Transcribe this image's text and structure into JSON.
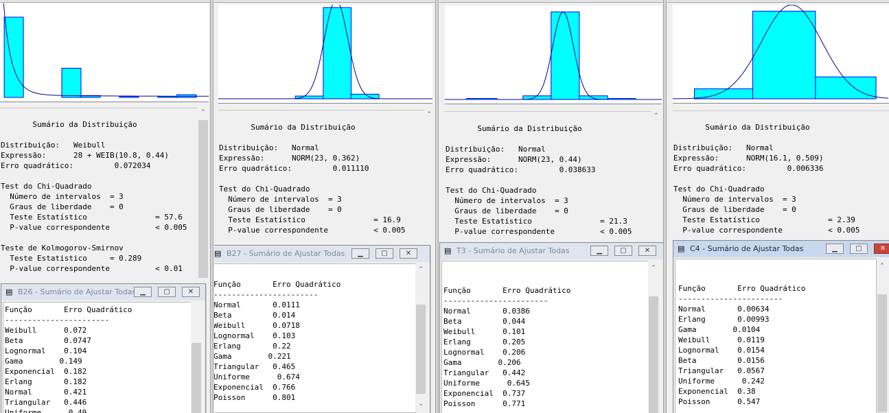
{
  "colors": {
    "bar_fill": "#00ffff",
    "bar_stroke": "#0000ff",
    "curve": "#00008b",
    "panel_bg": "#f0f0f0"
  },
  "panels": [
    {
      "summary_text": "       Sumário da Distribuição\n\nDistribuição:   Weibull\nExpressão:      28 + WEIB(10.8, 0.44)\nErro quadrático:         0.072034\n\nTest do Chi-Quadrado\n  Número de intervalos  = 3\n  Graus de liberdade    = 0\n  Teste Estatístico               = 57.6\n  P-value correspondente          < 0.005\n\nTeste de Kolmogorov-Smirnov\n  Teste Estatistico     = 0.289\n  P-value correspondente          < 0.01",
      "fit_window": {
        "title": "B26 - Sumário de Ajustar Todas",
        "active": false,
        "list_text": "Função       Erro Quadrático\n-----------------------\nWeibull      0.072\nBeta         0.0747\nLognormal    0.104\nGama        0.149\nExponencial  0.182\nErlang       0.182\nNormal       0.421\nTriangular   0.446\nUniforme      0.49"
      },
      "chart_data": {
        "type": "bar",
        "histogram": [
          0.88,
          0.0,
          0.0,
          0.32,
          0.02,
          0.0,
          0.01,
          0.0,
          0.01,
          0.03
        ],
        "x_range": [
          0,
          10
        ],
        "y_range": [
          0,
          1
        ],
        "curve": {
          "kind": "decay",
          "scale": 1.3,
          "rate": 2.2,
          "floor": 0.01
        }
      }
    },
    {
      "summary_text": "       Sumário da Distribuição\n\nDistribuição:   Normal\nExpressão:      NORM(23, 0.362)\nErro quadrático:         0.011110\n\nTest do Chi-Quadrado\n  Número de intervalos  = 3\n  Graus de liberdade    = 0\n  Teste Estatístico               = 16.9\n  P-value correspondente          < 0.005",
      "fit_window": {
        "title": "B27 - Sumário de Ajustar Todas",
        "active": false,
        "list_text": "Função       Erro Quadrático\n-----------------------\nNormal       0.0111\nBeta         0.014\nWeibull      0.0718\nLognormal    0.103\nErlang       0.22\nGama        0.221\nTriangular   0.465\nUniforme      0.674\nExponencial  0.766\nPoisson      0.801"
      },
      "chart_data": {
        "type": "bar",
        "histogram": [
          0.03,
          1.0,
          0.05
        ],
        "bins_x": [
          [
            0.36,
            0.49
          ],
          [
            0.49,
            0.62
          ],
          [
            0.62,
            0.75
          ]
        ],
        "y_range": [
          0,
          1
        ],
        "curve": {
          "kind": "normal",
          "mean": 0.55,
          "sd": 0.055,
          "peak": 1.08
        }
      }
    },
    {
      "summary_text": "       Sumário da Distribuição\n\nDistribuição:   Normal\nExpressão:      NORM(23, 0.44)\nErro quadrático:         0.038633\n\nTest do Chi-Quadrado\n  Número de intervalos  = 3\n  Graus de liberdade    = 0\n  Teste Estatístico               = 21.3\n  P-value correspondente          < 0.005",
      "fit_window": {
        "title": "T3 - Sumário de Ajustar Todas",
        "active": false,
        "list_text": "Função       Erro Quadrático\n-----------------------\nNormal       0.0386\nBeta         0.044\nWeibull      0.101\nErlang       0.205\nLognormal    0.206\nGama        0.206\nTriangular   0.442\nUniforme      0.645\nExponencial  0.737\nPoisson      0.771"
      },
      "chart_data": {
        "type": "bar",
        "histogram": [
          0.01,
          0.04,
          0.96,
          0.04,
          0.01
        ],
        "bins_x": [
          [
            0.1,
            0.24
          ],
          [
            0.36,
            0.49
          ],
          [
            0.49,
            0.62
          ],
          [
            0.62,
            0.75
          ],
          [
            0.75,
            0.88
          ]
        ],
        "y_range": [
          0,
          1
        ],
        "curve": {
          "kind": "normal",
          "mean": 0.545,
          "sd": 0.048,
          "peak": 0.96
        }
      }
    },
    {
      "summary_text": "       Sumário da Distribuição\n\nDistribuição:   Normal\nExpressão:      NORM(16.1, 0.509)\nErro quadrático:         0.006336\n\nTest do Chi-Quadrado\n  Número de intervalos  = 3\n  Graus de liberdade    = 0\n  Teste Estatístico               = 2.39\n  P-value correspondente          < 0.005",
      "fit_window": {
        "title": "C4 - Sumário de Ajustar Todas",
        "active": true,
        "list_text": "Função       Erro Quadrático\n-----------------------\nNormal       0.00634\nErlang       0.00993\nGama        0.0104\nWeibull      0.0119\nLognormal    0.0154\nBeta         0.0156\nTriangular   0.0567\nUniforme      0.242\nExponencial  0.38\nPoisson      0.547"
      },
      "chart_data": {
        "type": "bar",
        "histogram": [
          0.11,
          0.96,
          0.24
        ],
        "bins_x": [
          [
            0.1,
            0.37
          ],
          [
            0.37,
            0.66
          ],
          [
            0.66,
            0.94
          ]
        ],
        "y_range": [
          0,
          1
        ],
        "curve": {
          "kind": "normal",
          "mean": 0.55,
          "sd": 0.14,
          "peak": 1.03
        }
      }
    }
  ]
}
